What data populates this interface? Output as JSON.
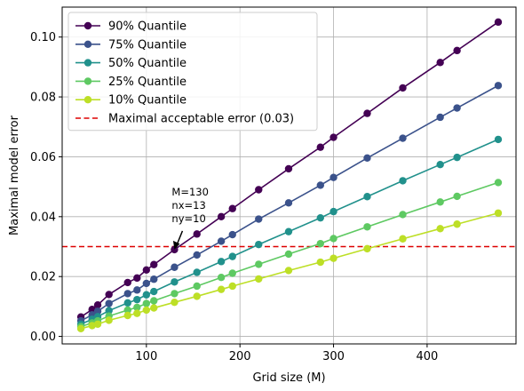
{
  "chart_data": {
    "type": "line",
    "xlabel": "Grid size (M)",
    "ylabel": "Maximal model error",
    "xlim": [
      10,
      495
    ],
    "ylim": [
      -0.0025,
      0.11
    ],
    "xticks": [
      100,
      200,
      300,
      400
    ],
    "yticks": [
      0.0,
      0.02,
      0.04,
      0.06,
      0.08,
      0.1
    ],
    "ytick_labels": [
      "0.00",
      "0.02",
      "0.04",
      "0.06",
      "0.08",
      "0.10"
    ],
    "grid": true,
    "legend_position": "top-left",
    "x": [
      30,
      42,
      48,
      60,
      80,
      90,
      100,
      108,
      130,
      154,
      180,
      192,
      220,
      252,
      286,
      300,
      336,
      374,
      414,
      432,
      476
    ],
    "series": [
      {
        "name": "90% Quantile",
        "color": "#440154",
        "values": [
          0.0065,
          0.009,
          0.0105,
          0.014,
          0.018,
          0.0195,
          0.0222,
          0.024,
          0.029,
          0.0342,
          0.04,
          0.0427,
          0.049,
          0.056,
          0.0632,
          0.0665,
          0.0745,
          0.083,
          0.0915,
          0.0955,
          0.105
        ]
      },
      {
        "name": "75% Quantile",
        "color": "#3b528b",
        "values": [
          0.0052,
          0.0072,
          0.0084,
          0.011,
          0.0143,
          0.0155,
          0.0177,
          0.0191,
          0.0231,
          0.0272,
          0.0318,
          0.034,
          0.0392,
          0.0446,
          0.0505,
          0.0531,
          0.0596,
          0.0662,
          0.0732,
          0.0763,
          0.0838
        ]
      },
      {
        "name": "50% Quantile",
        "color": "#21918c",
        "values": [
          0.0041,
          0.0057,
          0.0066,
          0.0086,
          0.0112,
          0.0123,
          0.0139,
          0.015,
          0.0182,
          0.0214,
          0.025,
          0.0267,
          0.0307,
          0.035,
          0.0396,
          0.0417,
          0.0467,
          0.052,
          0.0574,
          0.0598,
          0.0658
        ]
      },
      {
        "name": "25% Quantile",
        "color": "#5ec962",
        "values": [
          0.0033,
          0.0045,
          0.0052,
          0.0068,
          0.0088,
          0.0097,
          0.011,
          0.0119,
          0.0143,
          0.0168,
          0.0197,
          0.0211,
          0.0241,
          0.0275,
          0.031,
          0.0327,
          0.0366,
          0.0407,
          0.0449,
          0.0468,
          0.0514
        ]
      },
      {
        "name": "10% Quantile",
        "color": "#bddf26",
        "values": [
          0.0026,
          0.0036,
          0.0041,
          0.0054,
          0.007,
          0.0077,
          0.0088,
          0.0095,
          0.0114,
          0.0134,
          0.0157,
          0.0168,
          0.0192,
          0.022,
          0.0248,
          0.0261,
          0.0293,
          0.0326,
          0.036,
          0.0375,
          0.0412
        ]
      }
    ],
    "threshold": {
      "name": "Maximal acceptable error (0.03)",
      "value": 0.03,
      "color": "#dd0000"
    },
    "annotation": {
      "lines": [
        "M=130",
        "nx=13",
        "ny=10"
      ],
      "x": 130,
      "y": 0.029
    }
  }
}
